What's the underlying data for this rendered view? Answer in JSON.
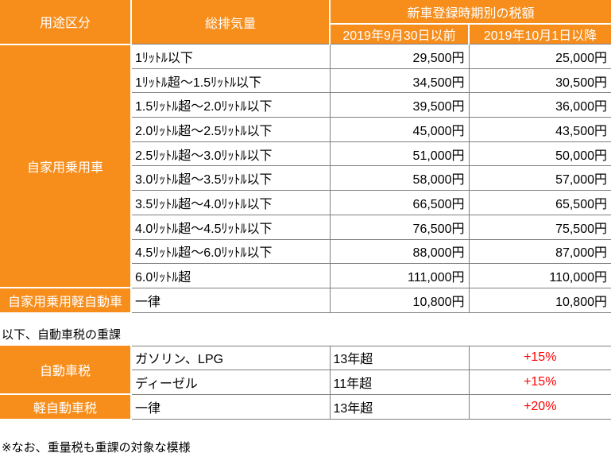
{
  "colors": {
    "orange": "#F78E1C",
    "border_gray": "#7F7F7F",
    "red": "#FF0000",
    "header_text": "#FFFFFF",
    "text": "#000000"
  },
  "main_table": {
    "header": {
      "usage": "用途区分",
      "displacement": "総排気量",
      "tax_group": "新車登録時期別の税額",
      "before": "2019年9月30日以前",
      "after": "2019年10月1日以降"
    },
    "rows": [
      {
        "category": "自家用乗用車",
        "category_rowspan": 10,
        "label": "1ﾘｯﾄﾙ以下",
        "before": "29,500円",
        "after": "25,000円"
      },
      {
        "label": "1ﾘｯﾄﾙ超～1.5ﾘｯﾄﾙ以下",
        "before": "34,500円",
        "after": "30,500円"
      },
      {
        "label": "1.5ﾘｯﾄﾙ超～2.0ﾘｯﾄﾙ以下",
        "before": "39,500円",
        "after": "36,000円"
      },
      {
        "label": "2.0ﾘｯﾄﾙ超～2.5ﾘｯﾄﾙ以下",
        "before": "45,000円",
        "after": "43,500円"
      },
      {
        "label": "2.5ﾘｯﾄﾙ超～3.0ﾘｯﾄﾙ以下",
        "before": "51,000円",
        "after": "50,000円"
      },
      {
        "label": "3.0ﾘｯﾄﾙ超～3.5ﾘｯﾄﾙ以下",
        "before": "58,000円",
        "after": "57,000円"
      },
      {
        "label": "3.5ﾘｯﾄﾙ超～4.0ﾘｯﾄﾙ以下",
        "before": "66,500円",
        "after": "65,500円"
      },
      {
        "label": "4.0ﾘｯﾄﾙ超～4.5ﾘｯﾄﾙ以下",
        "before": "76,500円",
        "after": "75,500円"
      },
      {
        "label": "4.5ﾘｯﾄﾙ超～6.0ﾘｯﾄﾙ以下",
        "before": "88,000円",
        "after": "87,000円"
      },
      {
        "label": "6.0ﾘｯﾄﾙ超",
        "before": "111,000円",
        "after": "110,000円"
      },
      {
        "category": "自家用乗用軽自動車",
        "category_rowspan": 1,
        "label": "一律",
        "before": "10,800円",
        "after": "10,800円"
      }
    ]
  },
  "surcharge": {
    "caption": "以下、自動車税の重課",
    "rows": [
      {
        "category": "自動車税",
        "category_rowspan": 2,
        "fuel": "ガソリン、LPG",
        "age": "13年超",
        "rate": "+15%"
      },
      {
        "fuel": "ディーゼル",
        "age": "11年超",
        "rate": "+15%"
      },
      {
        "category": "軽自動車税",
        "category_rowspan": 1,
        "fuel": "一律",
        "age": "13年超",
        "rate": "+20%"
      }
    ]
  },
  "footnote": "※なお、重量税も重課の対象な模様"
}
